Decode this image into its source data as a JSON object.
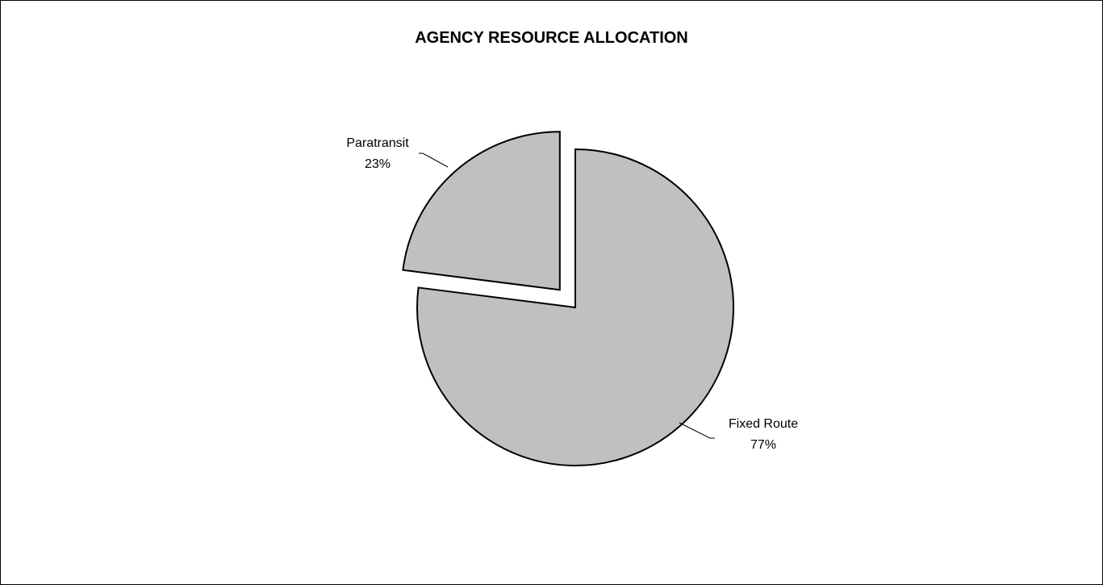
{
  "chart_data": {
    "type": "pie",
    "title": "AGENCY RESOURCE ALLOCATION",
    "slices": [
      {
        "label": "Fixed Route",
        "value": 77,
        "value_label": "77%",
        "exploded": false
      },
      {
        "label": "Paratransit",
        "value": 23,
        "value_label": "23%",
        "exploded": true
      }
    ],
    "slice_fill": "#c0c0c0",
    "slice_stroke": "#000000",
    "legend": "none"
  }
}
